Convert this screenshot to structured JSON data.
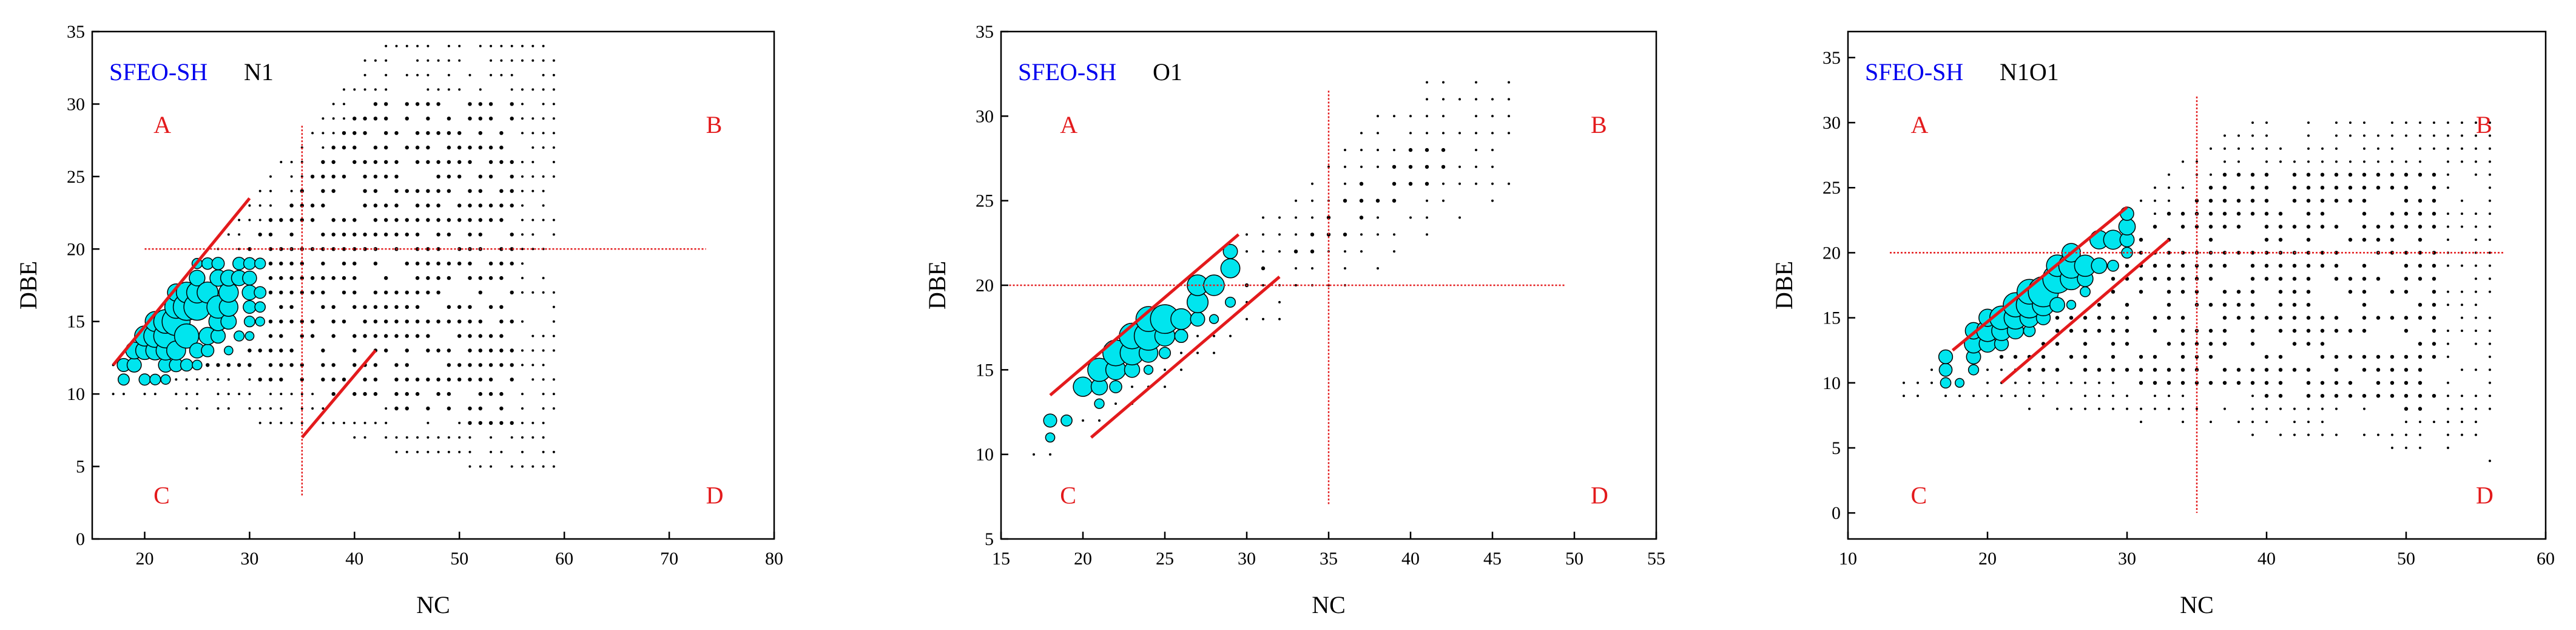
{
  "chart_data": [
    {
      "type": "scatter",
      "series_label": "SFEO-SH",
      "class_label": "N1",
      "xlabel": "NC",
      "ylabel": "DBE",
      "xlim": [
        15,
        80
      ],
      "ylim": [
        0,
        35
      ],
      "xticks": [
        "20",
        "30",
        "40",
        "50",
        "60",
        "70",
        "80"
      ],
      "yticks": [
        "0",
        "5",
        "10",
        "15",
        "20",
        "25",
        "30",
        "35"
      ],
      "quadrant_labels": [
        "A",
        "B",
        "C",
        "D"
      ],
      "guides": {
        "vertical_x": 35,
        "horizontal_y": 20
      },
      "trend_lines": [
        {
          "x1": 17,
          "y1": 12,
          "x2": 30,
          "y2": 23.5
        },
        {
          "x1": 35,
          "y1": 7,
          "x2": 42,
          "y2": 13
        }
      ],
      "grid": false,
      "legend": "none",
      "point_fill": "#00e5ee",
      "line_color": "#e31a1c",
      "label_color": "#0000ee"
    },
    {
      "type": "scatter",
      "series_label": "SFEO-SH",
      "class_label": "O1",
      "xlabel": "NC",
      "ylabel": "DBE",
      "xlim": [
        15,
        55
      ],
      "ylim": [
        5,
        35
      ],
      "xticks": [
        "15",
        "20",
        "25",
        "30",
        "35",
        "40",
        "45",
        "50",
        "55"
      ],
      "yticks": [
        "5",
        "10",
        "15",
        "20",
        "25",
        "30",
        "35"
      ],
      "quadrant_labels": [
        "A",
        "B",
        "C",
        "D"
      ],
      "guides": {
        "vertical_x": 35,
        "horizontal_y": 20
      },
      "trend_lines": [
        {
          "x1": 18,
          "y1": 13.5,
          "x2": 29.5,
          "y2": 23
        },
        {
          "x1": 20.5,
          "y1": 11,
          "x2": 32,
          "y2": 20.5
        }
      ],
      "grid": false,
      "legend": "none",
      "point_fill": "#00e5ee",
      "line_color": "#e31a1c",
      "label_color": "#0000ee"
    },
    {
      "type": "scatter",
      "series_label": "SFEO-SH",
      "class_label": "N1O1",
      "xlabel": "NC",
      "ylabel": "DBE",
      "xlim": [
        10,
        60
      ],
      "ylim": [
        -2,
        37
      ],
      "xticks": [
        "10",
        "20",
        "30",
        "40",
        "50",
        "60"
      ],
      "yticks": [
        "0",
        "5",
        "10",
        "15",
        "20",
        "25",
        "30",
        "35"
      ],
      "quadrant_labels": [
        "A",
        "B",
        "C",
        "D"
      ],
      "guides": {
        "vertical_x": 35,
        "horizontal_y": 20
      },
      "trend_lines": [
        {
          "x1": 17.5,
          "y1": 12.5,
          "x2": 30,
          "y2": 23.5
        },
        {
          "x1": 21,
          "y1": 10,
          "x2": 33,
          "y2": 21
        }
      ],
      "grid": false,
      "legend": "none",
      "point_fill": "#00e5ee",
      "line_color": "#e31a1c",
      "label_color": "#0000ee"
    }
  ]
}
